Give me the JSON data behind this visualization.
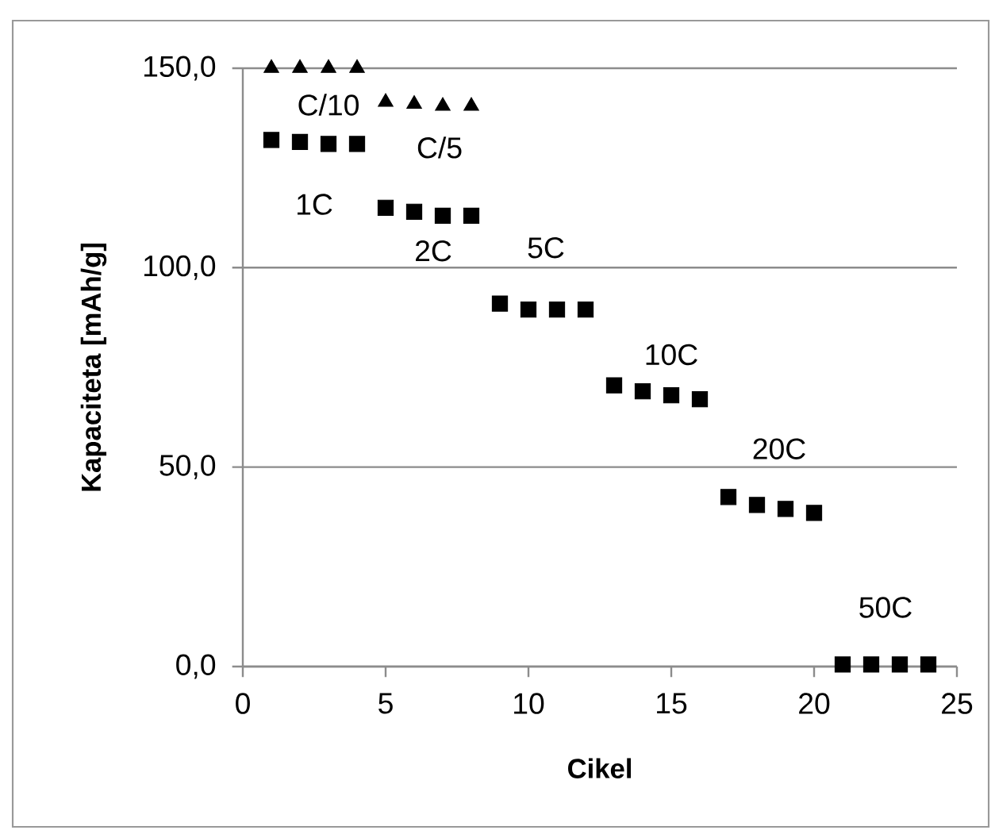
{
  "chart_data": {
    "type": "scatter",
    "xlabel": "Cikel",
    "ylabel": "Kapaciteta [mAh/g]",
    "series": [
      {
        "color": "#000000",
        "marker": "triangle",
        "x": [
          1,
          2,
          3,
          4,
          5,
          6,
          7,
          8
        ],
        "values": [
          150,
          150,
          150,
          150,
          141.5,
          141,
          140.5,
          140.5
        ]
      },
      {
        "color": "#000000",
        "marker": "square",
        "x": [
          1,
          2,
          3,
          4,
          5,
          6,
          7,
          8,
          9,
          10,
          11,
          12,
          13,
          14,
          15,
          16,
          17,
          18,
          19,
          20,
          21,
          22,
          23,
          24
        ],
        "values": [
          132,
          131.5,
          131,
          131,
          115,
          114,
          113,
          113,
          91,
          89.5,
          89.5,
          89.5,
          70.5,
          69,
          68,
          67,
          42.5,
          40.5,
          39.5,
          38.5,
          0.5,
          0.5,
          0.5,
          0.5
        ]
      }
    ],
    "xlim": [
      0,
      25
    ],
    "xticks": [
      0,
      5,
      10,
      15,
      20,
      25
    ],
    "ylim": [
      0,
      150
    ],
    "yticks": [
      {
        "value": 0,
        "label": "0,0"
      },
      {
        "value": 50,
        "label": "50,0"
      },
      {
        "value": 100,
        "label": "100,0"
      },
      {
        "value": 150,
        "label": "150,0"
      }
    ],
    "grid": "y",
    "annotations": [
      "C/10",
      "C/5",
      "1C",
      "2C",
      "5C",
      "10C",
      "20C",
      "50C"
    ]
  }
}
